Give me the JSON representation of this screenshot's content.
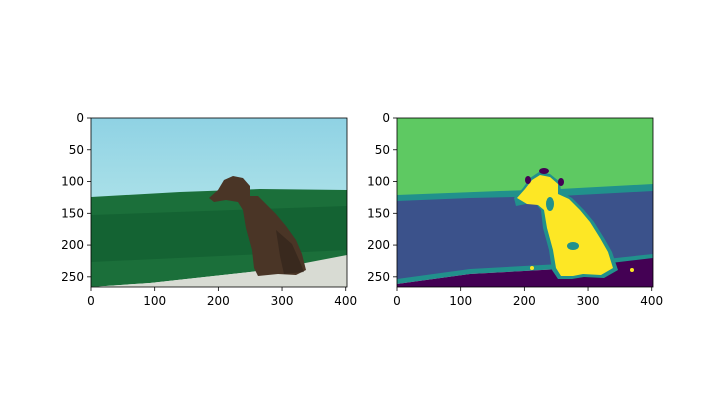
{
  "figure": {
    "background": "#ffffff"
  },
  "chart_data": [
    {
      "type": "image",
      "panel": "left",
      "content": "photo",
      "image_extent": {
        "width": 402,
        "height": 266
      },
      "xlim": [
        0,
        402
      ],
      "ylim": [
        266,
        0
      ],
      "xticks": [
        0,
        100,
        200,
        300,
        400
      ],
      "yticks": [
        0,
        50,
        100,
        150,
        200,
        250
      ],
      "colors": {
        "sky_top": "#8fd2e4",
        "sky_bottom": "#a9e0e8",
        "horizon": "#9fd8df",
        "grass": "#1b6f3a",
        "grass_dark": "#0f5a2d",
        "ground": "#d8dbd3",
        "dog": "#4a3526",
        "dog_dark": "#2f2219"
      }
    },
    {
      "type": "heatmap",
      "panel": "right",
      "content": "segmentation_mask",
      "colormap": "viridis",
      "image_extent": {
        "width": 402,
        "height": 266
      },
      "xlim": [
        0,
        402
      ],
      "ylim": [
        266,
        0
      ],
      "xticks": [
        0,
        100,
        200,
        300,
        400
      ],
      "yticks": [
        0,
        50,
        100,
        150,
        200,
        250
      ],
      "classes": [
        {
          "value": 0,
          "color": "#440154"
        },
        {
          "value": 1,
          "color": "#3b528b"
        },
        {
          "value": 2,
          "color": "#21918c"
        },
        {
          "value": 3,
          "color": "#5ec962"
        },
        {
          "value": 4,
          "color": "#fde725"
        }
      ]
    }
  ]
}
